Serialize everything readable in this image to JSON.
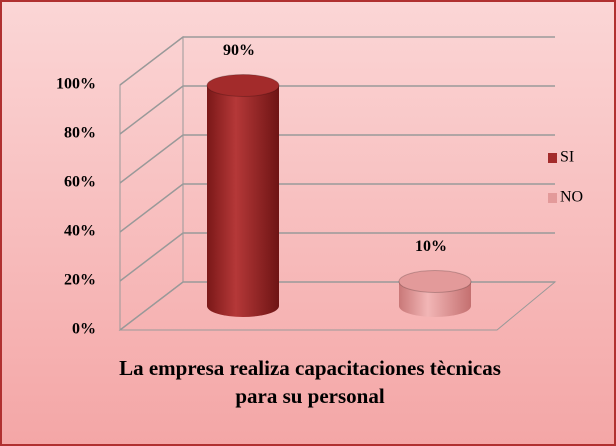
{
  "chart_data": {
    "type": "bar3d",
    "title": "La empresa realiza capacitaciones tècnicas para su personal",
    "categories": [
      "SI",
      "NO"
    ],
    "values": [
      90,
      10
    ],
    "value_labels": [
      "90%",
      "10%"
    ],
    "colors": [
      "#a32b2b",
      "#e39a9a"
    ],
    "ylim": [
      0,
      100
    ],
    "yticks": [
      {
        "value": 0,
        "label": "0%"
      },
      {
        "value": 20,
        "label": "20%"
      },
      {
        "value": 40,
        "label": "40%"
      },
      {
        "value": 60,
        "label": "60%"
      },
      {
        "value": 80,
        "label": "80%"
      },
      {
        "value": 100,
        "label": "100%"
      }
    ],
    "grid": true,
    "legend": "right"
  }
}
